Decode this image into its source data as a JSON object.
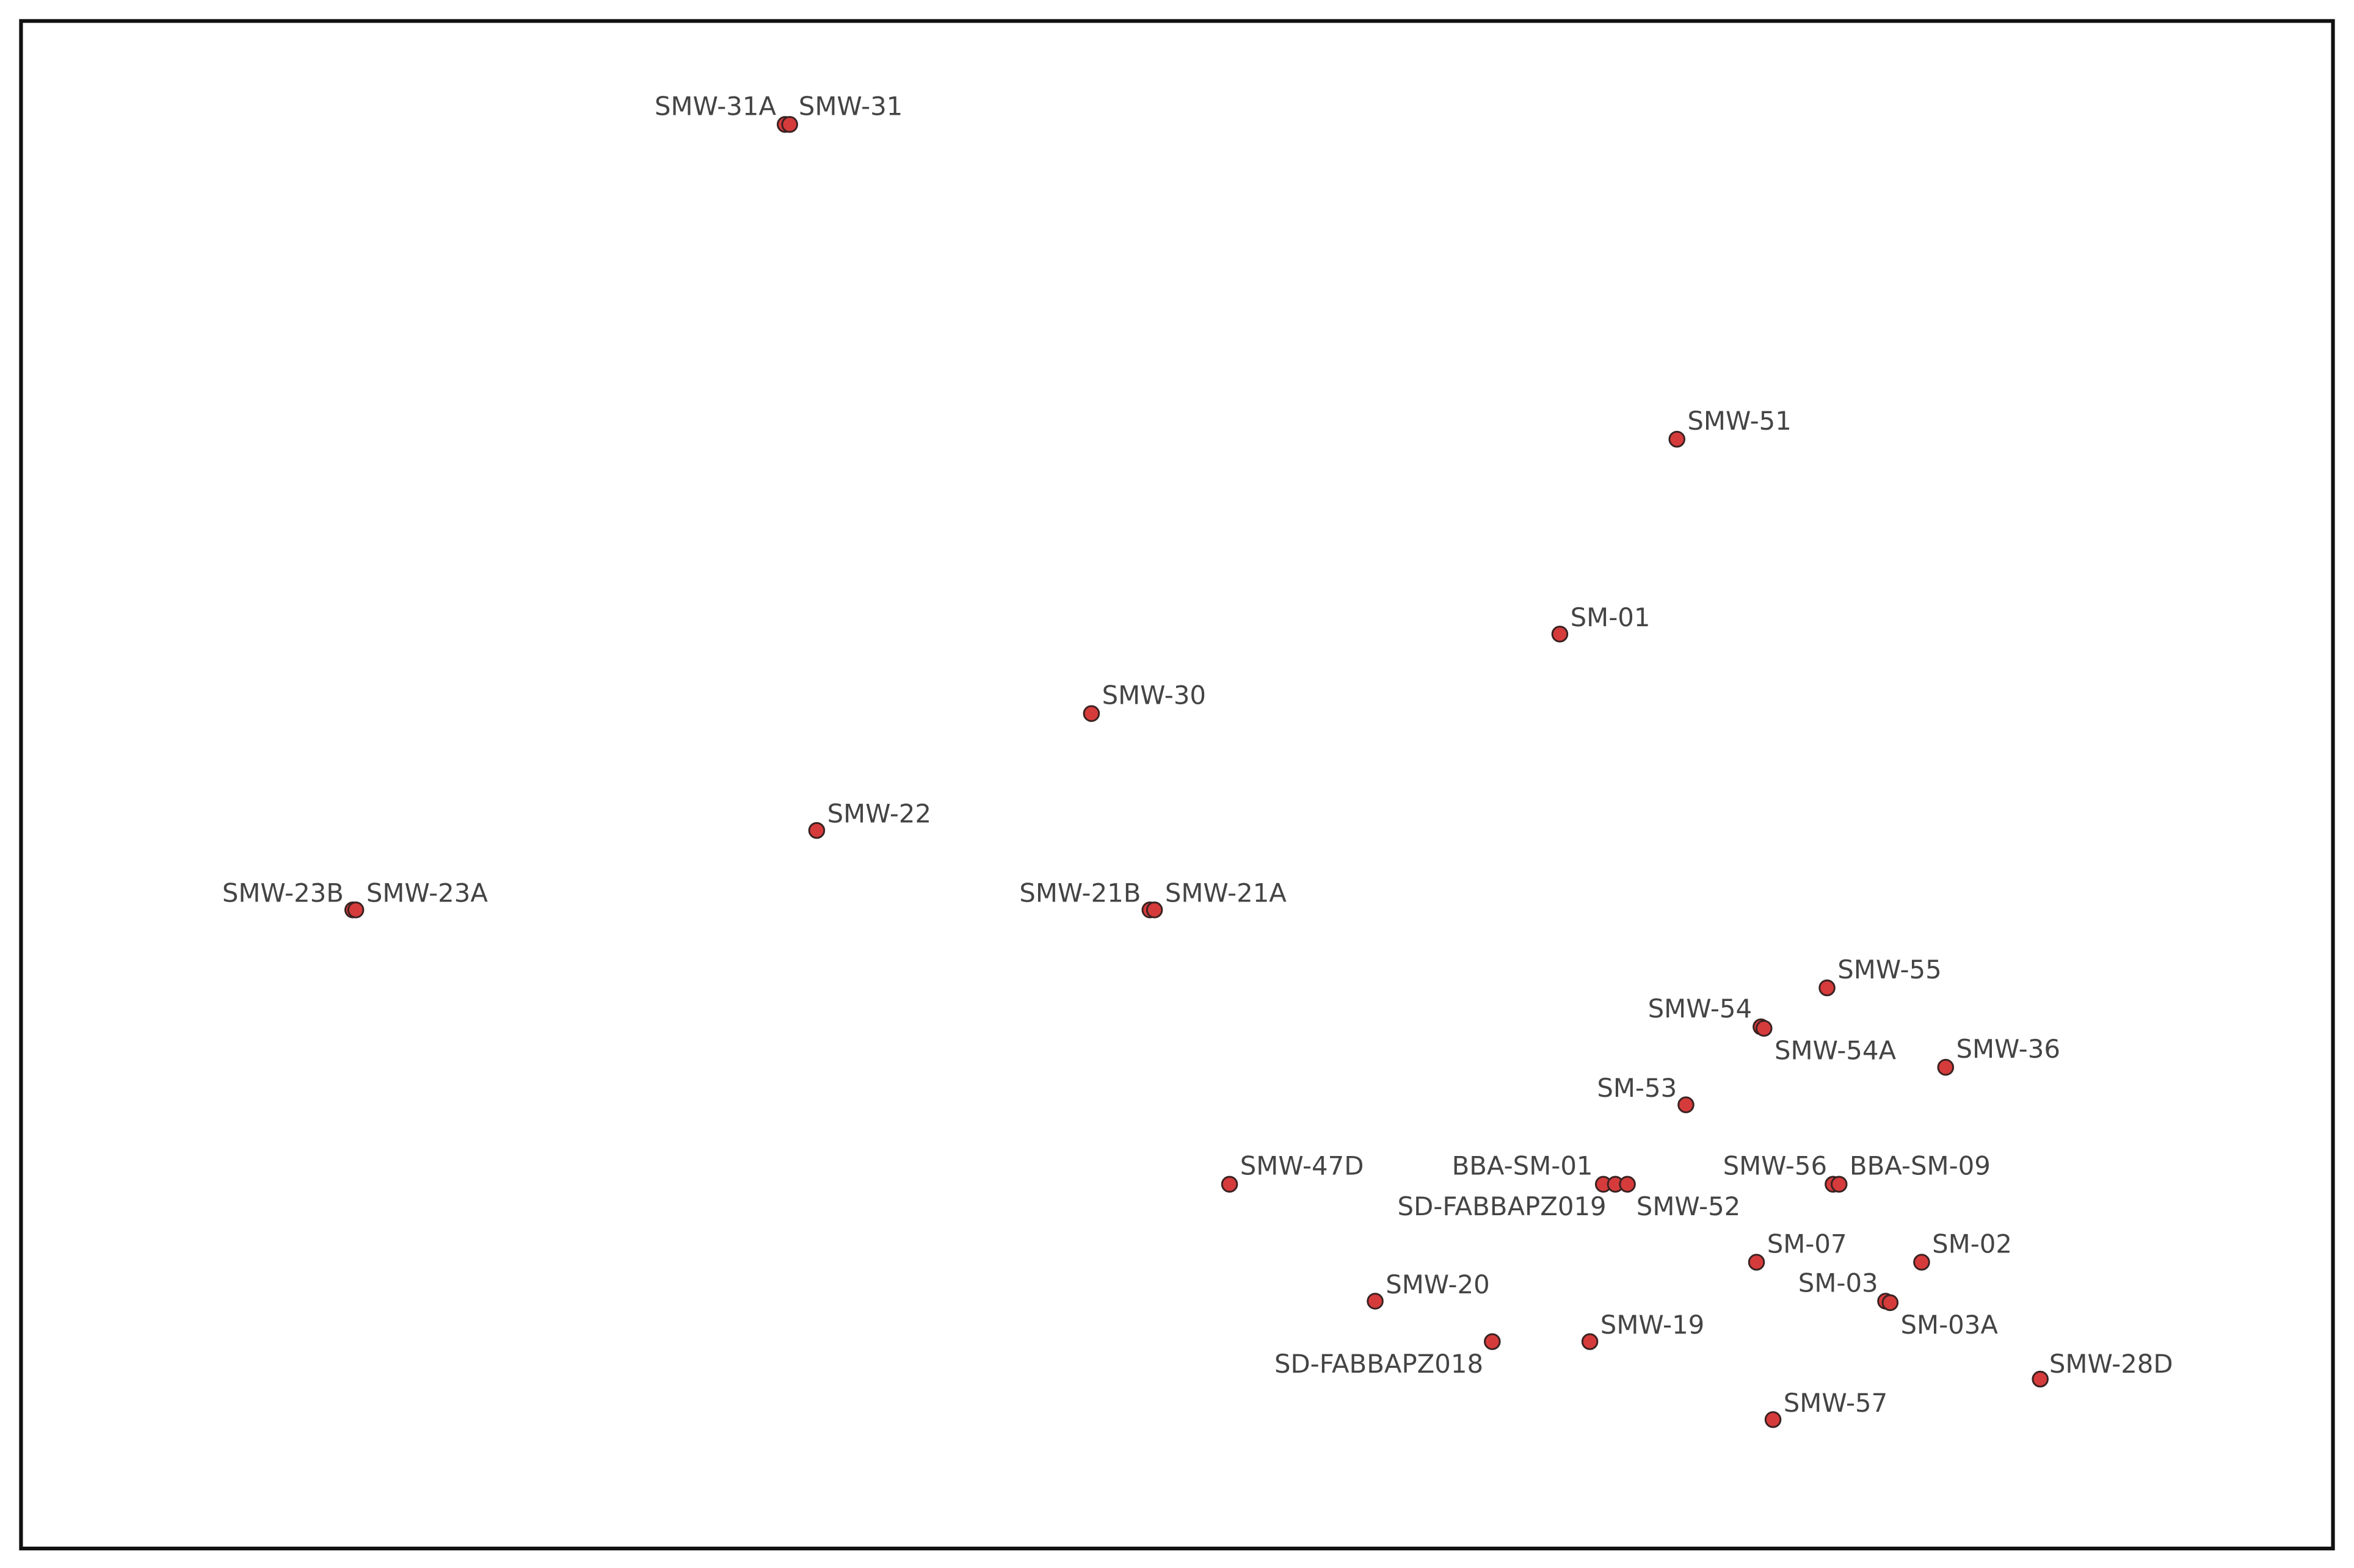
{
  "stations": [
    "SMW-31A",
    "SMW-31",
    "SMW-51",
    "SM-01",
    "SMW-30",
    "SMW-22",
    "SMW-23B",
    "SMW-23A",
    "SMW-21B",
    "SMW-21A",
    "SMW-55",
    "SMW-54",
    "SMW-54A",
    "SMW-36",
    "SM-53",
    "SMW-47D",
    "BBA-SM-01",
    "SD-FABBAPZ019",
    "SMW-52",
    "SMW-56",
    "BBA-SM-09",
    "SM-07",
    "SM-02",
    "SM-03",
    "SM-03A",
    "SMW-20",
    "SD-FABBAPZ018",
    "SMW-19",
    "SMW-28D",
    "SMW-57"
  ]
}
